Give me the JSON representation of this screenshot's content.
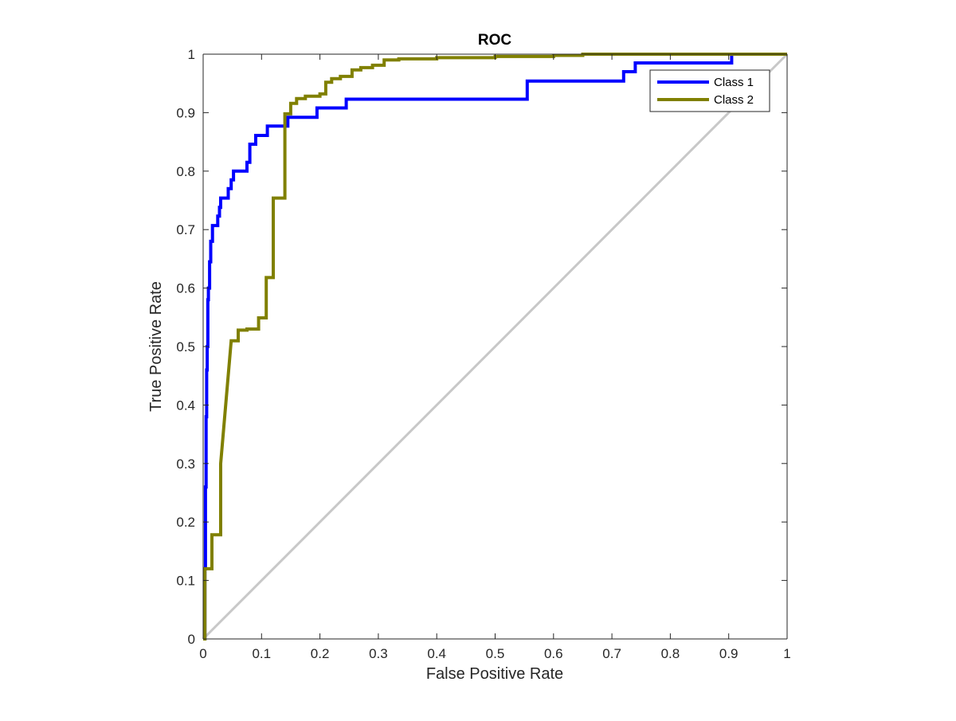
{
  "chart_data": {
    "type": "line",
    "title": "ROC",
    "xlabel": "False Positive Rate",
    "ylabel": "True Positive Rate",
    "xlim": [
      0,
      1
    ],
    "ylim": [
      0,
      1
    ],
    "xticks": [
      "0",
      "0.1",
      "0.2",
      "0.3",
      "0.4",
      "0.5",
      "0.6",
      "0.7",
      "0.8",
      "0.9",
      "1"
    ],
    "yticks": [
      "0",
      "0.1",
      "0.2",
      "0.3",
      "0.4",
      "0.5",
      "0.6",
      "0.7",
      "0.8",
      "0.9",
      "1"
    ],
    "grid": false,
    "legend_position": "top-right",
    "reference_line": {
      "x": [
        0,
        1
      ],
      "y": [
        0,
        1
      ],
      "color": "#c8c8c8"
    },
    "series": [
      {
        "name": "Class 1",
        "color": "#0000ff",
        "x": [
          0,
          0.003,
          0.003,
          0.004,
          0.004,
          0.005,
          0.005,
          0.006,
          0.006,
          0.007,
          0.007,
          0.008,
          0.008,
          0.009,
          0.009,
          0.011,
          0.011,
          0.013,
          0.013,
          0.016,
          0.016,
          0.025,
          0.025,
          0.028,
          0.028,
          0.03,
          0.03,
          0.043,
          0.043,
          0.048,
          0.048,
          0.052,
          0.052,
          0.075,
          0.075,
          0.08,
          0.08,
          0.09,
          0.09,
          0.11,
          0.11,
          0.145,
          0.145,
          0.195,
          0.195,
          0.245,
          0.245,
          0.555,
          0.555,
          0.72,
          0.72,
          0.74,
          0.74,
          0.905,
          0.905,
          1.0
        ],
        "y": [
          0,
          0,
          0.12,
          0.12,
          0.26,
          0.26,
          0.38,
          0.38,
          0.46,
          0.46,
          0.5,
          0.5,
          0.58,
          0.58,
          0.6,
          0.6,
          0.645,
          0.645,
          0.68,
          0.68,
          0.707,
          0.707,
          0.723,
          0.723,
          0.738,
          0.738,
          0.754,
          0.754,
          0.77,
          0.77,
          0.785,
          0.785,
          0.8,
          0.8,
          0.815,
          0.815,
          0.846,
          0.846,
          0.861,
          0.861,
          0.877,
          0.877,
          0.892,
          0.892,
          0.908,
          0.908,
          0.923,
          0.923,
          0.954,
          0.954,
          0.97,
          0.97,
          0.985,
          0.985,
          1.0,
          1.0
        ]
      },
      {
        "name": "Class 2",
        "color": "#808000",
        "x": [
          0,
          0.003,
          0.003,
          0.015,
          0.015,
          0.03,
          0.03,
          0.048,
          0.048,
          0.06,
          0.06,
          0.075,
          0.075,
          0.095,
          0.095,
          0.108,
          0.108,
          0.12,
          0.12,
          0.13,
          0.13,
          0.14,
          0.14,
          0.15,
          0.15,
          0.16,
          0.16,
          0.175,
          0.175,
          0.2,
          0.2,
          0.21,
          0.21,
          0.22,
          0.22,
          0.235,
          0.235,
          0.255,
          0.255,
          0.27,
          0.27,
          0.29,
          0.29,
          0.31,
          0.31,
          0.335,
          0.335,
          0.4,
          0.4,
          0.5,
          0.5,
          0.6,
          0.6,
          0.65,
          0.65,
          1.0
        ],
        "y": [
          0,
          0,
          0.12,
          0.12,
          0.178,
          0.178,
          0.3,
          0.51,
          0.51,
          0.51,
          0.528,
          0.528,
          0.53,
          0.53,
          0.549,
          0.549,
          0.618,
          0.618,
          0.754,
          0.754,
          0.754,
          0.754,
          0.898,
          0.898,
          0.916,
          0.916,
          0.924,
          0.924,
          0.928,
          0.928,
          0.932,
          0.932,
          0.952,
          0.952,
          0.958,
          0.958,
          0.962,
          0.962,
          0.973,
          0.973,
          0.977,
          0.977,
          0.981,
          0.981,
          0.99,
          0.99,
          0.992,
          0.992,
          0.994,
          0.994,
          0.996,
          0.996,
          0.998,
          0.998,
          1.0,
          1.0
        ]
      }
    ]
  }
}
